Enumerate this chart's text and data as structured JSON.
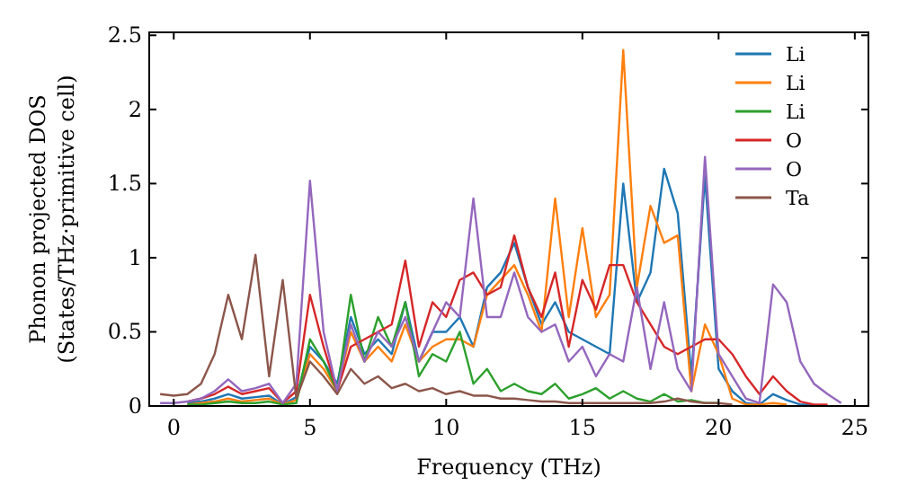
{
  "chart_data": {
    "type": "line",
    "xlabel": "Frequency (THz)",
    "ylabel": "Phonon projected DOS\n(States/THz·primitive cell)",
    "x": [
      -0.5,
      0,
      0.5,
      1,
      1.5,
      2,
      2.5,
      3,
      3.5,
      4,
      4.5,
      5,
      5.5,
      6,
      6.5,
      7,
      7.5,
      8,
      8.5,
      9,
      9.5,
      10,
      10.5,
      11,
      11.5,
      12,
      12.5,
      13,
      13.5,
      14,
      14.5,
      15,
      15.5,
      16,
      16.5,
      17,
      17.5,
      18,
      18.5,
      19,
      19.5,
      20,
      20.5,
      21,
      21.5,
      22,
      22.5,
      23,
      23.5,
      24,
      24.5
    ],
    "xlim": [
      -0.9,
      25.5
    ],
    "xticks": [
      0,
      5,
      10,
      15,
      20,
      25
    ],
    "ylim": [
      0,
      2.52
    ],
    "yticks": [
      0,
      0.5,
      1,
      1.5,
      2,
      2.5
    ],
    "grid": false,
    "legend": "top right",
    "marker": "none",
    "line_style": "solid",
    "series": [
      {
        "name": "Li",
        "color": "#1f77b4",
        "values": [
          null,
          null,
          0.02,
          0.03,
          0.05,
          0.08,
          0.05,
          0.06,
          0.07,
          0.01,
          0.06,
          0.4,
          0.3,
          0.15,
          0.6,
          0.35,
          0.45,
          0.35,
          0.7,
          0.3,
          0.5,
          0.5,
          0.6,
          0.4,
          0.8,
          0.9,
          1.1,
          0.8,
          0.55,
          0.7,
          0.5,
          0.45,
          0.4,
          0.35,
          1.5,
          0.7,
          0.9,
          1.6,
          1.3,
          0.2,
          1.55,
          0.25,
          0.1,
          0.02,
          0.01,
          0.08,
          0.04,
          0.01,
          0.01,
          null,
          null
        ]
      },
      {
        "name": "Li",
        "color": "#ff7f0e",
        "values": [
          null,
          null,
          0.01,
          0.02,
          0.03,
          0.05,
          0.03,
          0.04,
          0.05,
          0.01,
          0.04,
          0.35,
          0.25,
          0.1,
          0.5,
          0.3,
          0.4,
          0.3,
          0.55,
          0.3,
          0.4,
          0.45,
          0.45,
          0.4,
          0.75,
          0.85,
          0.95,
          0.75,
          0.5,
          1.4,
          0.6,
          1.2,
          0.6,
          0.75,
          2.4,
          0.8,
          1.35,
          1.1,
          1.15,
          0.1,
          0.55,
          0.35,
          0.05,
          0.01,
          0.01,
          0.02,
          0.01,
          null,
          null,
          null,
          null
        ]
      },
      {
        "name": "Li",
        "color": "#2ca02c",
        "values": [
          null,
          null,
          0.01,
          0.01,
          0.02,
          0.03,
          0.02,
          0.02,
          0.03,
          0.01,
          0.02,
          0.45,
          0.3,
          0.1,
          0.75,
          0.3,
          0.6,
          0.4,
          0.7,
          0.2,
          0.35,
          0.3,
          0.5,
          0.15,
          0.25,
          0.1,
          0.15,
          0.1,
          0.08,
          0.15,
          0.05,
          0.08,
          0.12,
          0.05,
          0.1,
          0.05,
          0.03,
          0.08,
          0.03,
          0.04,
          0.02,
          0.02,
          null,
          null,
          null,
          null,
          null,
          null,
          null,
          null,
          null
        ]
      },
      {
        "name": "O",
        "color": "#d62728",
        "values": [
          null,
          null,
          0.03,
          0.05,
          0.08,
          0.13,
          0.08,
          0.1,
          0.12,
          0.02,
          0.1,
          0.75,
          0.4,
          0.1,
          0.4,
          0.45,
          0.5,
          0.55,
          0.98,
          0.4,
          0.7,
          0.6,
          0.85,
          0.9,
          0.75,
          0.8,
          1.15,
          0.8,
          0.6,
          0.9,
          0.4,
          0.85,
          0.65,
          0.95,
          0.95,
          0.7,
          0.55,
          0.4,
          0.35,
          0.4,
          0.45,
          0.45,
          0.35,
          0.2,
          0.08,
          0.2,
          0.1,
          0.03,
          0.01,
          0.01,
          null
        ]
      },
      {
        "name": "O",
        "color": "#9467bd",
        "values": [
          0.02,
          0.02,
          0.03,
          0.05,
          0.1,
          0.18,
          0.1,
          0.12,
          0.15,
          0.02,
          0.15,
          1.52,
          0.5,
          0.1,
          0.55,
          0.3,
          0.5,
          0.4,
          0.6,
          0.3,
          0.5,
          0.7,
          0.6,
          1.4,
          0.6,
          0.6,
          0.9,
          0.6,
          0.5,
          0.55,
          0.3,
          0.4,
          0.2,
          0.35,
          0.3,
          0.8,
          0.25,
          0.7,
          0.25,
          0.1,
          1.68,
          0.35,
          0.2,
          0.05,
          0.02,
          0.82,
          0.7,
          0.3,
          0.15,
          0.08,
          0.02
        ]
      },
      {
        "name": "Ta",
        "color": "#8c564b",
        "values": [
          0.08,
          0.07,
          0.08,
          0.15,
          0.35,
          0.75,
          0.45,
          1.02,
          0.2,
          0.85,
          0.05,
          0.3,
          0.2,
          0.08,
          0.25,
          0.15,
          0.2,
          0.12,
          0.15,
          0.1,
          0.12,
          0.08,
          0.1,
          0.07,
          0.07,
          0.05,
          0.05,
          0.04,
          0.03,
          0.03,
          0.02,
          0.02,
          0.02,
          0.02,
          0.02,
          0.02,
          0.02,
          0.03,
          0.05,
          0.03,
          0.02,
          0.02,
          0.01,
          null,
          null,
          null,
          null,
          null,
          null,
          null,
          null
        ]
      }
    ]
  }
}
